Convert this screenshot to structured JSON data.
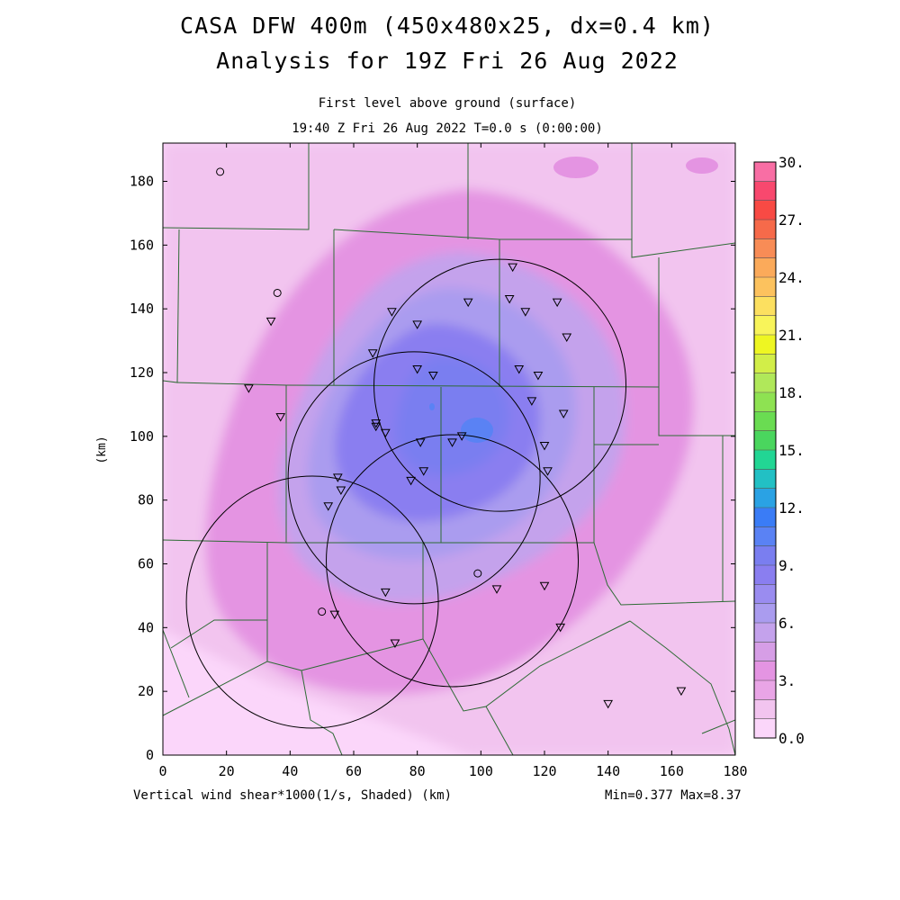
{
  "title_line1": "CASA DFW 400m (450x480x25, dx=0.4 km)",
  "title_line2": "Analysis for 19Z Fri 26 Aug 2022",
  "subtitle_line1": "First level above ground (surface)",
  "subtitle_line2": "19:40 Z Fri 26 Aug 2022   T=0.0 s (0:00:00)",
  "footer_left": "Vertical wind shear*1000(1/s, Shaded)  (km)",
  "footer_right": "Min=0.377 Max=8.37",
  "chart_data": {
    "type": "heatmap",
    "title": "CASA DFW 400m (450x480x25, dx=0.4 km)",
    "xlabel": "(km)",
    "ylabel": "(km)",
    "xlim": [
      0,
      180
    ],
    "ylim": [
      0,
      192
    ],
    "x_ticks": [
      0,
      20,
      40,
      60,
      80,
      100,
      120,
      140,
      160,
      180
    ],
    "y_ticks": [
      0,
      20,
      40,
      60,
      80,
      100,
      120,
      140,
      160,
      180
    ],
    "colorbar": {
      "min": 0,
      "max": 30,
      "step": 1.5,
      "labels": [
        {
          "value": 0,
          "text": "0.0"
        },
        {
          "value": 3,
          "text": "3."
        },
        {
          "value": 6,
          "text": "6."
        },
        {
          "value": 9,
          "text": "9."
        },
        {
          "value": 12,
          "text": "12."
        },
        {
          "value": 15,
          "text": "15."
        },
        {
          "value": 18,
          "text": "18."
        },
        {
          "value": 21,
          "text": "21."
        },
        {
          "value": 24,
          "text": "24."
        },
        {
          "value": 27,
          "text": "27."
        },
        {
          "value": 30,
          "text": "30."
        }
      ],
      "colors": [
        "#fbd6fa",
        "#f2c4ef",
        "#e9a5e6",
        "#e494e2",
        "#d69ee6",
        "#c4a2ec",
        "#aa9cef",
        "#9a8cf0",
        "#8a7ef0",
        "#7a7ef0",
        "#5a82f4",
        "#3a7cf6",
        "#2aa2e4",
        "#22c0c4",
        "#22d694",
        "#4ad65e",
        "#6adc52",
        "#8ee252",
        "#b0e85a",
        "#d2ee48",
        "#eef622",
        "#f8f45a",
        "#fce060",
        "#fcc25e",
        "#fbaa5a",
        "#f88c56",
        "#f66a4a",
        "#f84a44",
        "#f8486e",
        "#f86ea4"
      ]
    },
    "field": {
      "min": 0.377,
      "max": 8.37,
      "center_km": [
        96,
        100
      ]
    },
    "radar_range_circles_km": [
      {
        "cx": 106,
        "cy": 116
      },
      {
        "cx": 79,
        "cy": 87
      },
      {
        "cx": 47,
        "cy": 48
      },
      {
        "cx": 91,
        "cy": 61
      }
    ],
    "station_triangles_km": [
      [
        110,
        153
      ],
      [
        96,
        142
      ],
      [
        109,
        143
      ],
      [
        114,
        139
      ],
      [
        124,
        142
      ],
      [
        72,
        139
      ],
      [
        80,
        135
      ],
      [
        34,
        136
      ],
      [
        127,
        131
      ],
      [
        66,
        126
      ],
      [
        112,
        121
      ],
      [
        118,
        119
      ],
      [
        80,
        121
      ],
      [
        85,
        119
      ],
      [
        27,
        115
      ],
      [
        116,
        111
      ],
      [
        126,
        107
      ],
      [
        37,
        106
      ],
      [
        67,
        104
      ],
      [
        67,
        103
      ],
      [
        70,
        101
      ],
      [
        120,
        97
      ],
      [
        81,
        98
      ],
      [
        91,
        98
      ],
      [
        94,
        100
      ],
      [
        121,
        89
      ],
      [
        82,
        89
      ],
      [
        78,
        86
      ],
      [
        55,
        87
      ],
      [
        56,
        83
      ],
      [
        52,
        78
      ],
      [
        70,
        51
      ],
      [
        105,
        52
      ],
      [
        120,
        53
      ],
      [
        54,
        44
      ],
      [
        73,
        35
      ],
      [
        125,
        40
      ],
      [
        140,
        16
      ],
      [
        163,
        20
      ]
    ],
    "station_circles_km": [
      [
        18,
        183
      ],
      [
        36,
        145
      ],
      [
        99,
        57
      ],
      [
        50,
        45
      ]
    ]
  }
}
